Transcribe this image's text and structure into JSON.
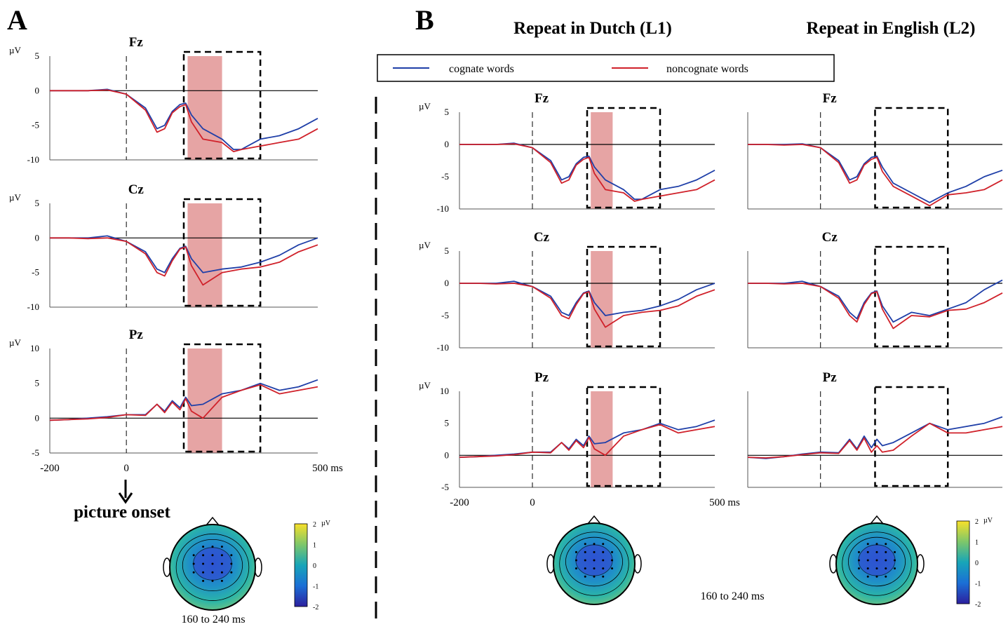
{
  "panels": {
    "A": {
      "letter": "A",
      "caption": "picture onset",
      "topo_caption": "160 to 240 ms"
    },
    "B": {
      "letter": "B",
      "title_l1": "Repeat in Dutch (L1)",
      "title_l2": "Repeat in English (L2)",
      "topo_caption": "160 to 240 ms"
    }
  },
  "legend": {
    "items": [
      {
        "label": "cognate words",
        "color": "#1f3fa8"
      },
      {
        "label": "noncognate words",
        "color": "#d0212a"
      }
    ]
  },
  "units": {
    "voltage": "µV",
    "time": "ms"
  },
  "colorbar": {
    "ticks": [
      2,
      1,
      0,
      -1,
      -2
    ],
    "unit": "µV"
  },
  "chart_data": [
    {
      "type": "line",
      "panel": "A",
      "electrode": "Fz",
      "xlim": [
        -200,
        500
      ],
      "ylim": [
        -10,
        5
      ],
      "yticks": [
        5,
        0,
        -5,
        -10
      ],
      "xticks": [
        -200,
        0,
        500
      ],
      "shaded_window_ms": [
        160,
        250
      ],
      "dashed_window_ms": [
        150,
        350
      ],
      "series": [
        {
          "name": "cognate words",
          "x": [
            -200,
            -150,
            -100,
            -50,
            0,
            50,
            80,
            100,
            120,
            140,
            155,
            170,
            200,
            250,
            280,
            300,
            350,
            400,
            450,
            500
          ],
          "y": [
            0,
            0,
            0,
            0.2,
            -0.5,
            -2.5,
            -5.5,
            -5,
            -3,
            -2,
            -1.8,
            -3.5,
            -5.5,
            -7,
            -8.5,
            -8.5,
            -7,
            -6.5,
            -5.5,
            -4
          ]
        },
        {
          "name": "noncognate words",
          "x": [
            -200,
            -150,
            -100,
            -50,
            0,
            50,
            80,
            100,
            120,
            140,
            155,
            170,
            200,
            250,
            280,
            300,
            350,
            400,
            450,
            500
          ],
          "y": [
            0,
            0,
            0,
            0.1,
            -0.5,
            -2.8,
            -6,
            -5.5,
            -3.2,
            -2.3,
            -2,
            -4.5,
            -7,
            -7.5,
            -8.8,
            -8.5,
            -8,
            -7.5,
            -7,
            -5.5
          ]
        }
      ]
    },
    {
      "type": "line",
      "panel": "A",
      "electrode": "Cz",
      "xlim": [
        -200,
        500
      ],
      "ylim": [
        -10,
        5
      ],
      "yticks": [
        5,
        0,
        -5,
        -10
      ],
      "xticks": [
        -200,
        0,
        500
      ],
      "shaded_window_ms": [
        160,
        250
      ],
      "dashed_window_ms": [
        150,
        350
      ],
      "series": [
        {
          "name": "cognate words",
          "x": [
            -200,
            -150,
            -100,
            -50,
            0,
            50,
            80,
            100,
            120,
            140,
            155,
            170,
            200,
            250,
            300,
            350,
            400,
            450,
            500
          ],
          "y": [
            0,
            0,
            0,
            0.3,
            -0.5,
            -2,
            -4.5,
            -5,
            -3,
            -1.5,
            -1.2,
            -3,
            -5,
            -4.5,
            -4.2,
            -3.5,
            -2.5,
            -1,
            0
          ]
        },
        {
          "name": "noncognate words",
          "x": [
            -200,
            -150,
            -100,
            -50,
            0,
            50,
            80,
            100,
            120,
            140,
            155,
            170,
            200,
            250,
            300,
            350,
            400,
            450,
            500
          ],
          "y": [
            0,
            0,
            -0.1,
            0,
            -0.5,
            -2.3,
            -5,
            -5.5,
            -3.3,
            -1.6,
            -1.3,
            -4,
            -6.8,
            -5,
            -4.5,
            -4.2,
            -3.5,
            -2,
            -1
          ]
        }
      ]
    },
    {
      "type": "line",
      "panel": "A",
      "electrode": "Pz",
      "xlim": [
        -200,
        500
      ],
      "ylim": [
        -5,
        10
      ],
      "yticks": [
        10,
        5,
        0,
        -5
      ],
      "xticks": [
        -200,
        0,
        500
      ],
      "shaded_window_ms": [
        160,
        250
      ],
      "dashed_window_ms": [
        150,
        350
      ],
      "series": [
        {
          "name": "cognate words",
          "x": [
            -200,
            -150,
            -100,
            -50,
            0,
            50,
            80,
            100,
            120,
            140,
            155,
            170,
            200,
            250,
            300,
            350,
            400,
            450,
            500
          ],
          "y": [
            -0.3,
            -0.2,
            0,
            0.2,
            0.5,
            0.5,
            2,
            1,
            2.5,
            1.5,
            3,
            1.8,
            2,
            3.5,
            4,
            5,
            4,
            4.5,
            5.5
          ]
        },
        {
          "name": "noncognate words",
          "x": [
            -200,
            -150,
            -100,
            -50,
            0,
            50,
            80,
            100,
            120,
            140,
            155,
            170,
            200,
            250,
            300,
            350,
            400,
            450,
            500
          ],
          "y": [
            -0.3,
            -0.2,
            -0.1,
            0.1,
            0.5,
            0.4,
            2,
            0.8,
            2.3,
            1.2,
            2.8,
            1,
            0,
            3,
            4,
            4.8,
            3.5,
            4,
            4.5
          ]
        }
      ]
    },
    {
      "type": "line",
      "panel": "B-L1",
      "electrode": "Fz",
      "xlim": [
        -200,
        500
      ],
      "ylim": [
        -10,
        5
      ],
      "yticks": [
        5,
        0,
        -5,
        -10
      ],
      "xticks": [
        -200,
        0,
        500
      ],
      "shaded_window_ms": [
        160,
        220
      ],
      "dashed_window_ms": [
        150,
        350
      ],
      "series": [
        {
          "name": "cognate words",
          "x": [
            -200,
            -150,
            -100,
            -50,
            0,
            50,
            80,
            100,
            120,
            140,
            155,
            170,
            200,
            250,
            280,
            300,
            350,
            400,
            450,
            500
          ],
          "y": [
            0,
            0,
            0,
            0.2,
            -0.5,
            -2.5,
            -5.5,
            -5,
            -3,
            -2,
            -1.8,
            -3.5,
            -5.5,
            -7,
            -8.5,
            -8.5,
            -7,
            -6.5,
            -5.5,
            -4
          ]
        },
        {
          "name": "noncognate words",
          "x": [
            -200,
            -150,
            -100,
            -50,
            0,
            50,
            80,
            100,
            120,
            140,
            155,
            170,
            200,
            250,
            280,
            300,
            350,
            400,
            450,
            500
          ],
          "y": [
            0,
            0,
            0,
            0.1,
            -0.5,
            -2.8,
            -6,
            -5.5,
            -3.2,
            -2.3,
            -2,
            -4.5,
            -7,
            -7.5,
            -8.8,
            -8.5,
            -8,
            -7.5,
            -7,
            -5.5
          ]
        }
      ]
    },
    {
      "type": "line",
      "panel": "B-L1",
      "electrode": "Cz",
      "xlim": [
        -200,
        500
      ],
      "ylim": [
        -10,
        5
      ],
      "yticks": [
        5,
        0,
        -5,
        -10
      ],
      "xticks": [
        -200,
        0,
        500
      ],
      "shaded_window_ms": [
        160,
        220
      ],
      "dashed_window_ms": [
        150,
        350
      ],
      "series": [
        {
          "name": "cognate words",
          "x": [
            -200,
            -150,
            -100,
            -50,
            0,
            50,
            80,
            100,
            120,
            140,
            155,
            170,
            200,
            250,
            300,
            350,
            400,
            450,
            500
          ],
          "y": [
            0,
            0,
            0,
            0.3,
            -0.5,
            -2,
            -4.5,
            -5,
            -3,
            -1.5,
            -1.2,
            -3,
            -5,
            -4.5,
            -4.2,
            -3.5,
            -2.5,
            -1,
            0
          ]
        },
        {
          "name": "noncognate words",
          "x": [
            -200,
            -150,
            -100,
            -50,
            0,
            50,
            80,
            100,
            120,
            140,
            155,
            170,
            200,
            250,
            300,
            350,
            400,
            450,
            500
          ],
          "y": [
            0,
            0,
            -0.1,
            0,
            -0.5,
            -2.3,
            -5,
            -5.5,
            -3.3,
            -1.6,
            -1.3,
            -4,
            -6.8,
            -5,
            -4.5,
            -4.2,
            -3.5,
            -2,
            -1
          ]
        }
      ]
    },
    {
      "type": "line",
      "panel": "B-L1",
      "electrode": "Pz",
      "xlim": [
        -200,
        500
      ],
      "ylim": [
        -5,
        10
      ],
      "yticks": [
        10,
        5,
        0,
        -5
      ],
      "xticks": [
        -200,
        0,
        500
      ],
      "shaded_window_ms": [
        160,
        220
      ],
      "dashed_window_ms": [
        150,
        350
      ],
      "series": [
        {
          "name": "cognate words",
          "x": [
            -200,
            -150,
            -100,
            -50,
            0,
            50,
            80,
            100,
            120,
            140,
            155,
            170,
            200,
            250,
            300,
            350,
            400,
            450,
            500
          ],
          "y": [
            -0.3,
            -0.2,
            0,
            0.2,
            0.5,
            0.5,
            2,
            1,
            2.5,
            1.5,
            3,
            1.8,
            2,
            3.5,
            4,
            5,
            4,
            4.5,
            5.5
          ]
        },
        {
          "name": "noncognate words",
          "x": [
            -200,
            -150,
            -100,
            -50,
            0,
            50,
            80,
            100,
            120,
            140,
            155,
            170,
            200,
            250,
            300,
            350,
            400,
            450,
            500
          ],
          "y": [
            -0.3,
            -0.2,
            -0.1,
            0.1,
            0.5,
            0.4,
            2,
            0.8,
            2.3,
            1.2,
            2.8,
            1,
            0,
            3,
            4,
            4.8,
            3.5,
            4,
            4.5
          ]
        }
      ]
    },
    {
      "type": "line",
      "panel": "B-L2",
      "electrode": "Fz",
      "xlim": [
        -200,
        500
      ],
      "ylim": [
        -10,
        5
      ],
      "yticks": [],
      "xticks": [],
      "dashed_window_ms": [
        150,
        350
      ],
      "series": [
        {
          "name": "cognate words",
          "x": [
            -200,
            -150,
            -100,
            -50,
            0,
            50,
            80,
            100,
            120,
            140,
            155,
            170,
            200,
            250,
            300,
            350,
            400,
            450,
            500
          ],
          "y": [
            0,
            0,
            0,
            0.1,
            -0.5,
            -2.5,
            -5.5,
            -5,
            -3,
            -2,
            -1.8,
            -3.5,
            -6,
            -7.5,
            -9,
            -7.5,
            -6.5,
            -5,
            -4
          ]
        },
        {
          "name": "noncognate words",
          "x": [
            -200,
            -150,
            -100,
            -50,
            0,
            50,
            80,
            100,
            120,
            140,
            155,
            170,
            200,
            250,
            300,
            350,
            400,
            450,
            500
          ],
          "y": [
            0,
            0,
            -0.1,
            0,
            -0.5,
            -2.8,
            -6,
            -5.5,
            -3.2,
            -2.3,
            -2,
            -4.2,
            -6.5,
            -8,
            -9.5,
            -7.8,
            -7.5,
            -7,
            -5.5
          ]
        }
      ]
    },
    {
      "type": "line",
      "panel": "B-L2",
      "electrode": "Cz",
      "xlim": [
        -200,
        500
      ],
      "ylim": [
        -10,
        5
      ],
      "yticks": [],
      "xticks": [],
      "dashed_window_ms": [
        150,
        350
      ],
      "series": [
        {
          "name": "cognate words",
          "x": [
            -200,
            -150,
            -100,
            -50,
            0,
            50,
            80,
            100,
            120,
            140,
            155,
            170,
            200,
            250,
            300,
            350,
            400,
            450,
            500
          ],
          "y": [
            0,
            0,
            0,
            0.3,
            -0.5,
            -2,
            -4.5,
            -5.5,
            -3,
            -1.5,
            -1.2,
            -3.5,
            -6,
            -4.5,
            -5,
            -4,
            -3,
            -1,
            0.5
          ]
        },
        {
          "name": "noncognate words",
          "x": [
            -200,
            -150,
            -100,
            -50,
            0,
            50,
            80,
            100,
            120,
            140,
            155,
            170,
            200,
            250,
            300,
            350,
            400,
            450,
            500
          ],
          "y": [
            0,
            0,
            -0.1,
            0,
            -0.5,
            -2.3,
            -5,
            -6,
            -3.3,
            -1.6,
            -1.3,
            -4,
            -7,
            -5,
            -5.2,
            -4.2,
            -4,
            -3,
            -1.5
          ]
        }
      ]
    },
    {
      "type": "line",
      "panel": "B-L2",
      "electrode": "Pz",
      "xlim": [
        -200,
        500
      ],
      "ylim": [
        -5,
        10
      ],
      "yticks": [],
      "xticks": [],
      "dashed_window_ms": [
        150,
        350
      ],
      "series": [
        {
          "name": "cognate words",
          "x": [
            -200,
            -150,
            -100,
            -50,
            0,
            50,
            80,
            100,
            120,
            140,
            155,
            170,
            200,
            250,
            300,
            350,
            400,
            450,
            500
          ],
          "y": [
            -0.3,
            -0.5,
            -0.2,
            0.2,
            0.5,
            0.4,
            2.5,
            1,
            3,
            1.2,
            2.5,
            1.5,
            2,
            3.5,
            5,
            4,
            4.5,
            5,
            6
          ]
        },
        {
          "name": "noncognate words",
          "x": [
            -200,
            -150,
            -100,
            -50,
            0,
            50,
            80,
            100,
            120,
            140,
            155,
            170,
            200,
            250,
            300,
            350,
            400,
            450,
            500
          ],
          "y": [
            -0.3,
            -0.4,
            -0.2,
            0.1,
            0.4,
            0.3,
            2.3,
            0.8,
            2.7,
            0.5,
            1.5,
            0.5,
            0.8,
            3,
            5,
            3.5,
            3.5,
            4,
            4.5
          ]
        }
      ]
    }
  ]
}
